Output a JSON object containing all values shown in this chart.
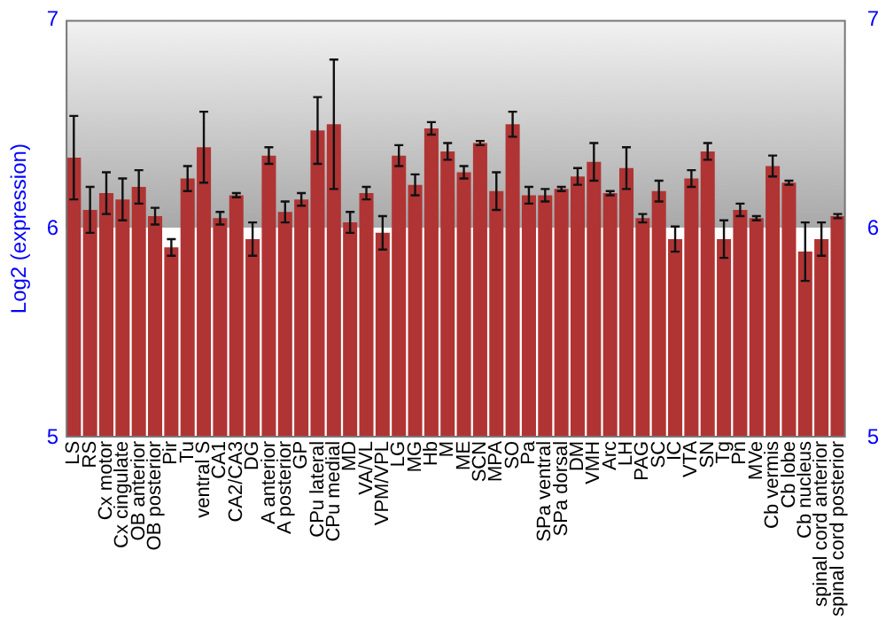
{
  "chart_data": {
    "type": "bar",
    "ylabel": "Log2 (expression)",
    "categories": [
      "LS",
      "RS",
      "Cx motor",
      "Cx cingulate",
      "OB anterior",
      "OB posterior",
      "Pir",
      "Tu",
      "ventral S",
      "CA1",
      "CA2/CA3",
      "DG",
      "A anterior",
      "A posterior",
      "GP",
      "CPu lateral",
      "CPu medial",
      "MD",
      "VA/VL",
      "VPM/VPL",
      "LG",
      "MG",
      "Hb",
      "M",
      "ME",
      "SCN",
      "MPA",
      "SO",
      "Pa",
      "SPa ventral",
      "SPa dorsal",
      "DM",
      "VMH",
      "Arc",
      "LH",
      "PAG",
      "SC",
      "IC",
      "VTA",
      "SN",
      "Tg",
      "Pn",
      "MVe",
      "Cb vermis",
      "Cb lobe",
      "Cb nucleus",
      "spinal cord anterior",
      "spinal cord posterior"
    ],
    "values": [
      6.34,
      6.09,
      6.17,
      6.14,
      6.2,
      6.06,
      5.91,
      6.24,
      6.39,
      6.05,
      6.16,
      5.95,
      6.35,
      6.08,
      6.14,
      6.47,
      6.5,
      6.03,
      6.17,
      5.98,
      6.35,
      6.21,
      6.48,
      6.37,
      6.27,
      6.41,
      6.18,
      6.5,
      6.16,
      6.16,
      6.19,
      6.25,
      6.32,
      6.17,
      6.29,
      6.05,
      6.18,
      5.95,
      6.24,
      6.37,
      5.95,
      6.09,
      6.05,
      6.3,
      6.22,
      5.89,
      5.95,
      6.06
    ],
    "errors": [
      0.2,
      0.11,
      0.1,
      0.1,
      0.08,
      0.04,
      0.04,
      0.06,
      0.17,
      0.03,
      0.01,
      0.08,
      0.04,
      0.05,
      0.03,
      0.16,
      0.31,
      0.05,
      0.03,
      0.08,
      0.05,
      0.05,
      0.03,
      0.04,
      0.03,
      0.01,
      0.09,
      0.06,
      0.04,
      0.03,
      0.01,
      0.04,
      0.09,
      0.01,
      0.1,
      0.02,
      0.05,
      0.06,
      0.04,
      0.04,
      0.09,
      0.03,
      0.01,
      0.05,
      0.01,
      0.14,
      0.08,
      0.01
    ],
    "color": "#b03434",
    "ylim": [
      5,
      7
    ],
    "yticks": [
      5,
      6,
      7
    ],
    "y2lim": [
      5,
      7
    ],
    "y2ticks": [
      5,
      6,
      7
    ],
    "grid": "y"
  }
}
